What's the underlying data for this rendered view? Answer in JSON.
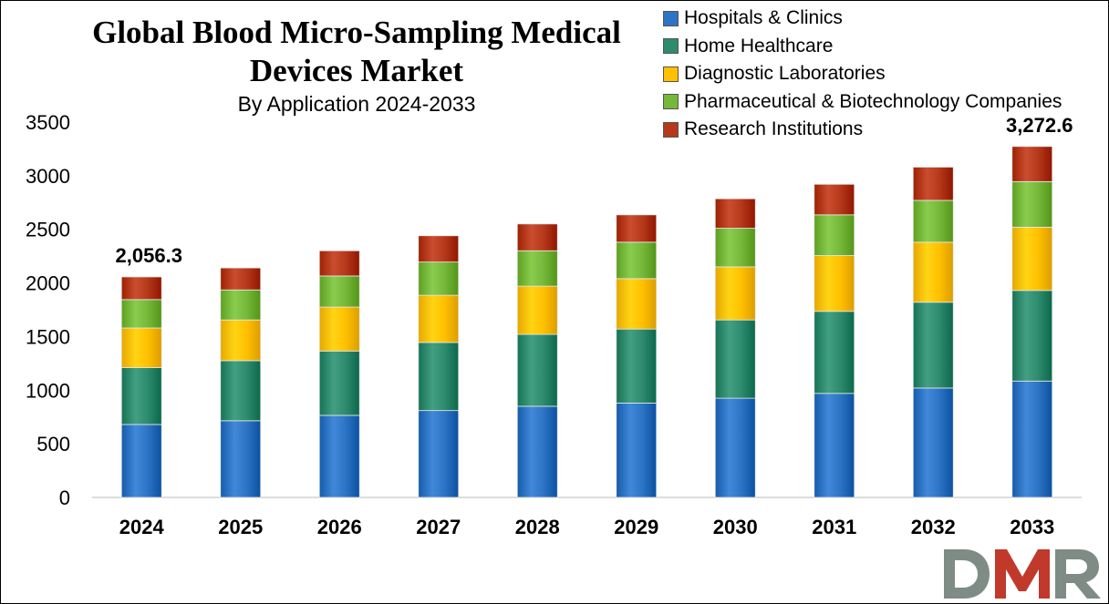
{
  "page": {
    "title": "Global Blood Micro-Sampling Medical Devices Market",
    "subtitle": "By Application 2024-2033"
  },
  "logo": {
    "text": "DMR"
  },
  "colors": {
    "Hospitals & Clinics": "#2e74c4",
    "Home Healthcare": "#2e8b6e",
    "Diagnostic Laboratories": "#ffc000",
    "Pharmaceutical & Biotechnology Companies": "#76b83a",
    "Research Institutions": "#b5391a"
  },
  "chart_data": {
    "type": "bar",
    "stacked": true,
    "categories": [
      "2024",
      "2025",
      "2026",
      "2027",
      "2028",
      "2029",
      "2030",
      "2031",
      "2032",
      "2033"
    ],
    "series": [
      {
        "name": "Hospitals & Clinics",
        "values": [
          680,
          715,
          765,
          810,
          850,
          880,
          925,
          970,
          1020,
          1085
        ]
      },
      {
        "name": "Home Healthcare",
        "values": [
          530,
          560,
          600,
          635,
          670,
          690,
          730,
          765,
          800,
          845
        ]
      },
      {
        "name": "Diagnostic Laboratories",
        "values": [
          370,
          380,
          410,
          440,
          450,
          470,
          495,
          520,
          560,
          590
        ]
      },
      {
        "name": "Pharmaceutical & Biotechnology Companies",
        "values": [
          265,
          280,
          290,
          310,
          330,
          340,
          360,
          380,
          390,
          425
        ]
      },
      {
        "name": "Research Institutions",
        "values": [
          211.3,
          205,
          235,
          245,
          250,
          255,
          275,
          285,
          310,
          327.6
        ]
      }
    ],
    "annotations": [
      {
        "category": "2024",
        "text": "2,056.3"
      },
      {
        "category": "2033",
        "text": "3,272.6"
      }
    ],
    "ylim": [
      0,
      3500
    ],
    "yticks": [
      0,
      500,
      1000,
      1500,
      2000,
      2500,
      3000,
      3500
    ],
    "xlabel": "",
    "ylabel": "",
    "grid": false,
    "legend": "top-right"
  }
}
